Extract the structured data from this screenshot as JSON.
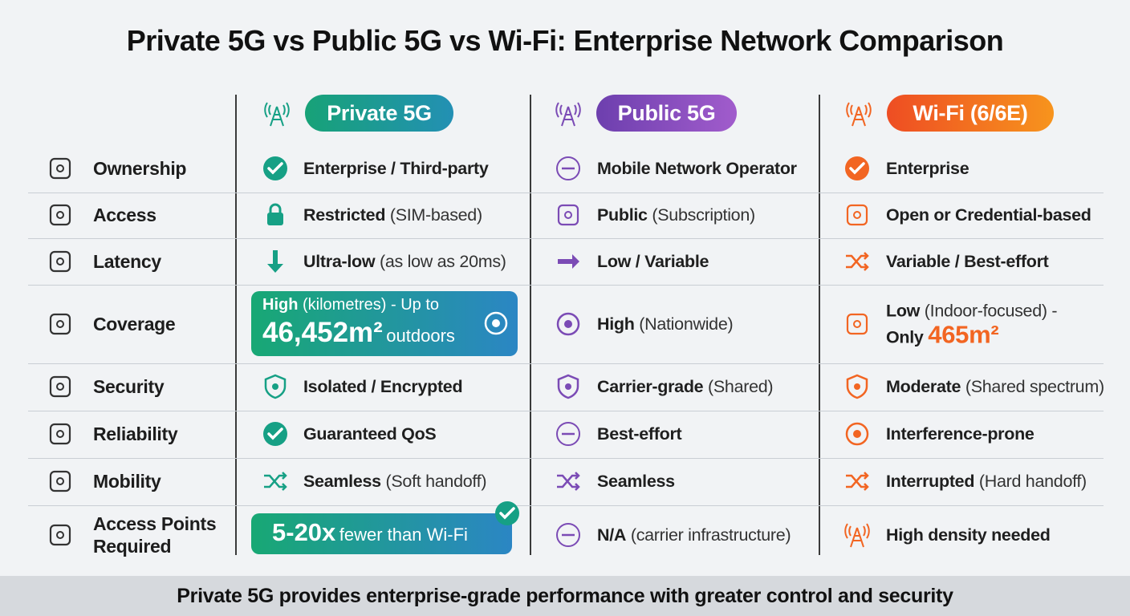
{
  "title": "Private 5G vs Public 5G vs Wi-Fi: Enterprise Network Comparison",
  "columns": [
    {
      "name": "Private 5G"
    },
    {
      "name": "Public 5G"
    },
    {
      "name": "Wi-Fi (6/6E)"
    }
  ],
  "rows": [
    {
      "label": "Ownership",
      "cells": [
        {
          "text": "Enterprise / Third-party"
        },
        {
          "text": "Mobile Network Operator"
        },
        {
          "text": "Enterprise"
        }
      ]
    },
    {
      "label": "Access",
      "cells": [
        {
          "text": "Restricted",
          "detail": "(SIM-based)"
        },
        {
          "text": "Public",
          "detail": "(Subscription)"
        },
        {
          "text": "Open or Credential-based"
        }
      ]
    },
    {
      "label": "Latency",
      "cells": [
        {
          "text": "Ultra-low",
          "detail": "(as low as 20ms)"
        },
        {
          "text": "Low / Variable"
        },
        {
          "text": "Variable / Best-effort"
        }
      ]
    },
    {
      "label": "Coverage",
      "cells": [
        {
          "text": "High",
          "detail": "(kilometres) - Up to",
          "figure": "46,452m²",
          "suffix": "outdoors"
        },
        {
          "text": "High",
          "detail": "(Nationwide)"
        },
        {
          "text": "Low",
          "detail": "(Indoor-focused) -",
          "prefix": "Only",
          "figure": "465m²"
        }
      ]
    },
    {
      "label": "Security",
      "cells": [
        {
          "text": "Isolated / Encrypted"
        },
        {
          "text": "Carrier-grade",
          "detail": "(Shared)"
        },
        {
          "text": "Moderate",
          "detail": "(Shared spectrum)"
        }
      ]
    },
    {
      "label": "Reliability",
      "cells": [
        {
          "text": "Guaranteed QoS"
        },
        {
          "text": "Best-effort"
        },
        {
          "text": "Interference-prone"
        }
      ]
    },
    {
      "label": "Mobility",
      "cells": [
        {
          "text": "Seamless",
          "detail": "(Soft handoff)"
        },
        {
          "text": "Seamless"
        },
        {
          "text": "Interrupted",
          "detail": "(Hard handoff)"
        }
      ]
    },
    {
      "label": "Access Points Required",
      "cells": [
        {
          "figure": "5-20x",
          "suffix": "fewer than Wi-Fi"
        },
        {
          "text": "N/A",
          "detail": "(carrier infrastructure)"
        },
        {
          "text": "High density needed"
        }
      ]
    }
  ],
  "footer": "Private 5G provides enterprise-grade performance with greater control and security"
}
